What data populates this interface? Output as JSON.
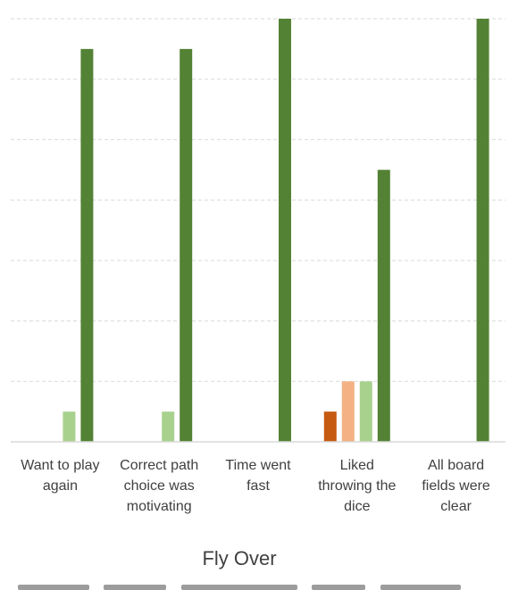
{
  "chart_data": {
    "type": "bar",
    "title": "Fly Over",
    "categories": [
      [
        "Want to play",
        "again"
      ],
      [
        "Correct path",
        "choice was",
        "motivating"
      ],
      [
        "Time went",
        "fast"
      ],
      [
        "Liked",
        "throwing the",
        "dice"
      ],
      [
        "All board",
        "fields were",
        "clear"
      ]
    ],
    "series": [
      {
        "color": "#c55a11",
        "values": [
          0,
          0,
          0,
          1,
          0
        ]
      },
      {
        "color": "#f4b183",
        "values": [
          0,
          0,
          0,
          2,
          0
        ]
      },
      {
        "color": "#a9d18e",
        "values": [
          1,
          1,
          0,
          2,
          0
        ]
      },
      {
        "color": "#548235",
        "values": [
          13,
          13,
          14,
          9,
          14
        ]
      }
    ],
    "ylim": [
      0,
      14
    ],
    "grid": true,
    "gridline_values": [
      2,
      4,
      6,
      8,
      10,
      12,
      14
    ],
    "legend": "none"
  }
}
